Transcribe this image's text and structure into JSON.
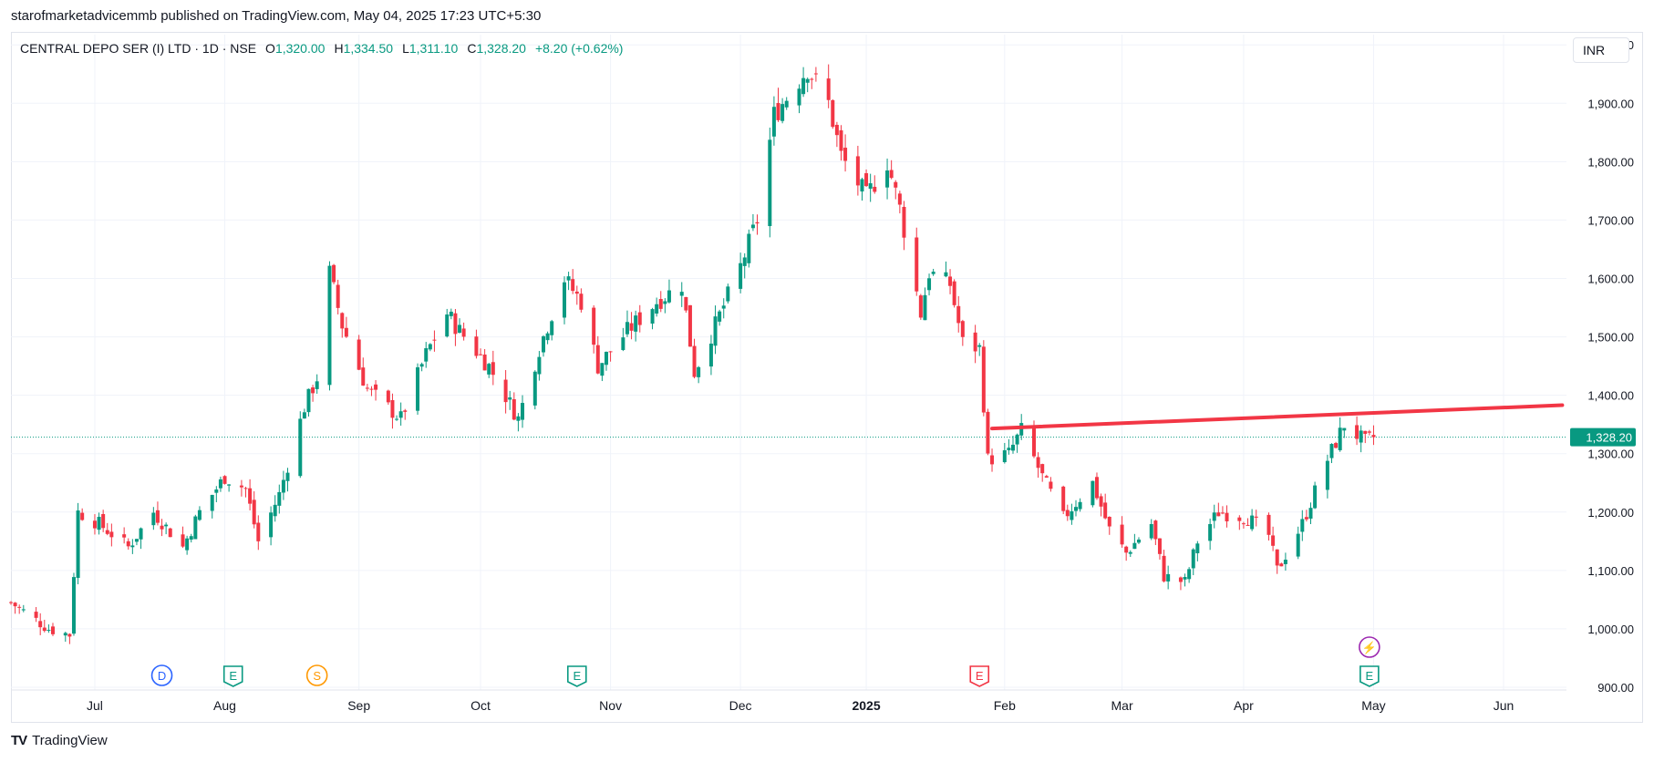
{
  "header": {
    "publisher_line": "starofmarketadvicemmb published on TradingView.com, May 04, 2025 17:23 UTC+5:30"
  },
  "legend": {
    "symbol": "CENTRAL DEPO SER (I) LTD · 1D · NSE",
    "open_label": "O",
    "open": "1,320.00",
    "high_label": "H",
    "high": "1,334.50",
    "low_label": "L",
    "low": "1,311.10",
    "close_label": "C",
    "close": "1,328.20",
    "change": "+8.20 (+0.62%)"
  },
  "currency": "INR",
  "footer": {
    "logo": "TV",
    "brand": "TradingView"
  },
  "colors": {
    "up": "#089981",
    "down": "#f23645",
    "trendline": "#f23645",
    "grid": "#f0f3fa",
    "price_line": "#089981"
  },
  "chart_data": {
    "type": "candlestick",
    "ylim": [
      900,
      2030
    ],
    "y_ticks": [
      {
        "value": 900,
        "label": "900.00"
      },
      {
        "value": 1000,
        "label": "1,000.00"
      },
      {
        "value": 1100,
        "label": "1,100.00"
      },
      {
        "value": 1200,
        "label": "1,200.00"
      },
      {
        "value": 1300,
        "label": "1,300.00"
      },
      {
        "value": 1400,
        "label": "1,400.00"
      },
      {
        "value": 1500,
        "label": "1,500.00"
      },
      {
        "value": 1600,
        "label": "1,600.00"
      },
      {
        "value": 1700,
        "label": "1,700.00"
      },
      {
        "value": 1800,
        "label": "1,800.00"
      },
      {
        "value": 1900,
        "label": "1,900.00"
      },
      {
        "value": 2000,
        "label": "2,000.00"
      }
    ],
    "x_range": [
      "2024-06-11",
      "2025-06-17"
    ],
    "x_ticks": [
      {
        "date": "2024-07-01",
        "label": "Jul",
        "bold": false
      },
      {
        "date": "2024-08-01",
        "label": "Aug",
        "bold": false
      },
      {
        "date": "2024-09-02",
        "label": "Sep",
        "bold": false
      },
      {
        "date": "2024-10-01",
        "label": "Oct",
        "bold": false
      },
      {
        "date": "2024-11-01",
        "label": "Nov",
        "bold": false
      },
      {
        "date": "2024-12-02",
        "label": "Dec",
        "bold": false
      },
      {
        "date": "2025-01-01",
        "label": "2025",
        "bold": true
      },
      {
        "date": "2025-02-03",
        "label": "Feb",
        "bold": false
      },
      {
        "date": "2025-03-03",
        "label": "Mar",
        "bold": false
      },
      {
        "date": "2025-04-01",
        "label": "Apr",
        "bold": false
      },
      {
        "date": "2025-05-02",
        "label": "May",
        "bold": false
      },
      {
        "date": "2025-06-02",
        "label": "Jun",
        "bold": false
      }
    ],
    "last_price": {
      "value": 1328.2,
      "label": "1,328.20"
    },
    "trendline": {
      "x1": "2025-01-31",
      "y1": 1343,
      "x2": "2025-06-16",
      "y2": 1383
    },
    "events": [
      {
        "date": "2024-07-17",
        "letter": "D",
        "color": "#2962ff",
        "row": 0
      },
      {
        "date": "2024-08-03",
        "letter": "E",
        "color": "#089981",
        "row": 0
      },
      {
        "date": "2024-08-23",
        "letter": "S",
        "color": "#ff9800",
        "row": 0
      },
      {
        "date": "2024-10-24",
        "letter": "E",
        "color": "#089981",
        "row": 0
      },
      {
        "date": "2025-01-28",
        "letter": "E",
        "color": "#f23645",
        "row": 0
      },
      {
        "date": "2025-05-01",
        "letter": "E",
        "color": "#089981",
        "row": 0
      },
      {
        "date": "2025-05-01",
        "letter": "⚡",
        "color": "#9c27b0",
        "row": 1
      }
    ],
    "anchors": [
      [
        "2024-06-11",
        1045
      ],
      [
        "2024-06-20",
        1000
      ],
      [
        "2024-06-25",
        990
      ],
      [
        "2024-06-27",
        1200
      ],
      [
        "2024-07-02",
        1180
      ],
      [
        "2024-07-09",
        1140
      ],
      [
        "2024-07-15",
        1200
      ],
      [
        "2024-07-22",
        1140
      ],
      [
        "2024-07-26",
        1200
      ],
      [
        "2024-08-01",
        1260
      ],
      [
        "2024-08-06",
        1240
      ],
      [
        "2024-08-09",
        1150
      ],
      [
        "2024-08-14",
        1230
      ],
      [
        "2024-08-20",
        1380
      ],
      [
        "2024-08-23",
        1430
      ],
      [
        "2024-08-26",
        1610
      ],
      [
        "2024-08-29",
        1520
      ],
      [
        "2024-09-04",
        1410
      ],
      [
        "2024-09-12",
        1360
      ],
      [
        "2024-09-18",
        1470
      ],
      [
        "2024-09-23",
        1540
      ],
      [
        "2024-09-26",
        1510
      ],
      [
        "2024-10-03",
        1450
      ],
      [
        "2024-10-10",
        1360
      ],
      [
        "2024-10-15",
        1480
      ],
      [
        "2024-10-21",
        1600
      ],
      [
        "2024-10-25",
        1560
      ],
      [
        "2024-10-29",
        1450
      ],
      [
        "2024-11-05",
        1510
      ],
      [
        "2024-11-12",
        1560
      ],
      [
        "2024-11-18",
        1590
      ],
      [
        "2024-11-21",
        1440
      ],
      [
        "2024-11-26",
        1520
      ],
      [
        "2024-12-02",
        1620
      ],
      [
        "2024-12-06",
        1700
      ],
      [
        "2024-12-10",
        1880
      ],
      [
        "2024-12-18",
        1960
      ],
      [
        "2024-12-23",
        1900
      ],
      [
        "2024-12-26",
        1810
      ],
      [
        "2025-01-01",
        1740
      ],
      [
        "2025-01-06",
        1800
      ],
      [
        "2025-01-09",
        1720
      ],
      [
        "2025-01-14",
        1540
      ],
      [
        "2025-01-16",
        1610
      ],
      [
        "2025-01-21",
        1590
      ],
      [
        "2025-01-24",
        1490
      ],
      [
        "2025-01-28",
        1480
      ],
      [
        "2025-01-30",
        1290
      ],
      [
        "2025-02-04",
        1300
      ],
      [
        "2025-02-07",
        1340
      ],
      [
        "2025-02-12",
        1260
      ],
      [
        "2025-02-17",
        1190
      ],
      [
        "2025-02-24",
        1250
      ],
      [
        "2025-02-28",
        1170
      ],
      [
        "2025-03-04",
        1130
      ],
      [
        "2025-03-10",
        1180
      ],
      [
        "2025-03-13",
        1090
      ],
      [
        "2025-03-18",
        1080
      ],
      [
        "2025-03-21",
        1150
      ],
      [
        "2025-03-26",
        1200
      ],
      [
        "2025-04-02",
        1190
      ],
      [
        "2025-04-07",
        1160
      ],
      [
        "2025-04-09",
        1100
      ],
      [
        "2025-04-15",
        1180
      ],
      [
        "2025-04-21",
        1290
      ],
      [
        "2025-04-25",
        1350
      ],
      [
        "2025-04-30",
        1320
      ],
      [
        "2025-05-02",
        1328
      ]
    ]
  }
}
